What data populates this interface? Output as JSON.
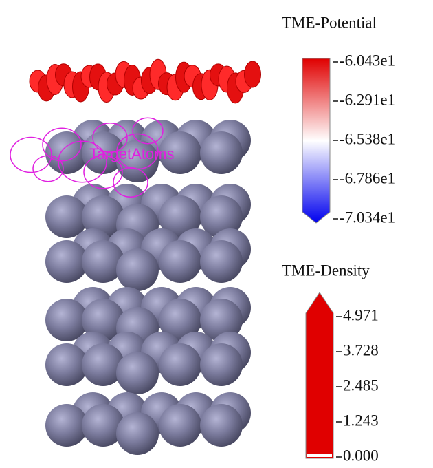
{
  "atom_label": "TargetAtoms",
  "legends": [
    {
      "title": "TME-Potential",
      "ticks": [
        "-6.043e1",
        "-6.291e1",
        "-6.538e1",
        "-6.786e1",
        "-7.034e1"
      ]
    },
    {
      "title": "TME-Density",
      "ticks": [
        "4.971",
        "3.728",
        "2.485",
        "1.243",
        "0.000"
      ]
    }
  ]
}
